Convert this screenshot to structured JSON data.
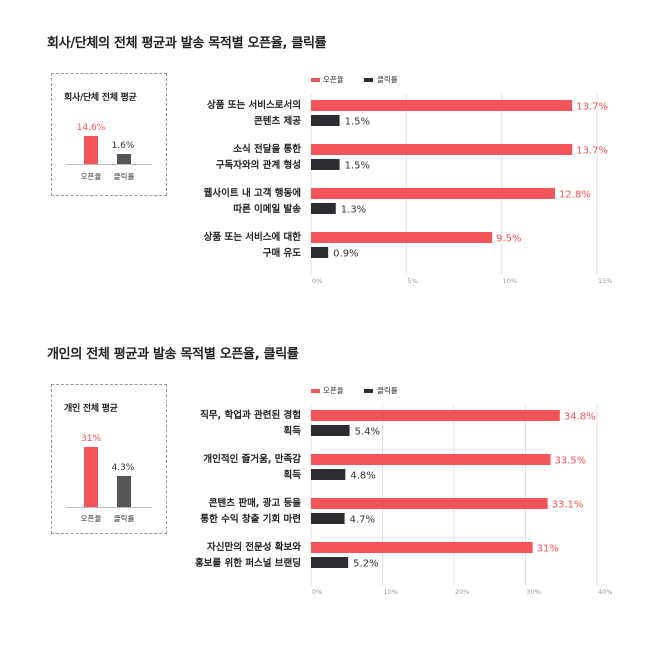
{
  "colors": {
    "open": "#f25459",
    "click": "#2b2d30",
    "grid": "#e2e2e2"
  },
  "chart_data": [
    {
      "type": "bar",
      "title": "회사/단체의 전체 평균과 발송 목적별 오픈율, 클릭률",
      "summary": {
        "title": "회사/단체 전체 평균",
        "categories": [
          "오픈율",
          "클릭률"
        ],
        "values": [
          14.6,
          1.6
        ],
        "value_labels": [
          "14.6%",
          "1.6%"
        ]
      },
      "legend": [
        "오픈율",
        "클릭률"
      ],
      "categories": [
        [
          "상품 또는 서비스로서의",
          "콘텐츠 제공"
        ],
        [
          "소식 전달을 통한",
          "구독자와의 관계 형성"
        ],
        [
          "웹사이트 내 고객 행동에",
          "따른 이메일 발송"
        ],
        [
          "상품 또는 서비스에 대한",
          "구매 유도"
        ]
      ],
      "series": [
        {
          "name": "오픈율",
          "values": [
            13.7,
            13.7,
            12.8,
            9.5
          ],
          "labels": [
            "13.7%",
            "13.7%",
            "12.8%",
            "9.5%"
          ]
        },
        {
          "name": "클릭률",
          "values": [
            1.5,
            1.5,
            1.3,
            0.9
          ],
          "labels": [
            "1.5%",
            "1.5%",
            "1.3%",
            "0.9%"
          ]
        }
      ],
      "xlim": [
        0,
        15
      ],
      "xticks": [
        "0%",
        "5%",
        "10%",
        "15%"
      ]
    },
    {
      "type": "bar",
      "title": "개인의 전체 평균과 발송 목적별 오픈율, 클릭률",
      "summary": {
        "title": "개인 전체 평균",
        "categories": [
          "오픈율",
          "클릭률"
        ],
        "values": [
          31,
          4.3
        ],
        "value_labels": [
          "31%",
          "4.3%"
        ]
      },
      "legend": [
        "오픈율",
        "클릭률"
      ],
      "categories": [
        [
          "직무, 학업과 관련된 경험",
          "획득"
        ],
        [
          "개인적인 즐거움, 만족감",
          "획득"
        ],
        [
          "콘텐츠 판매, 광고 등을",
          "통한 수익 창출 기회 마련"
        ],
        [
          "자신만의 전문성 확보와",
          "홍보를 위한 퍼스널 브랜딩"
        ]
      ],
      "series": [
        {
          "name": "오픈율",
          "values": [
            34.8,
            33.5,
            33.1,
            31
          ],
          "labels": [
            "34.8%",
            "33.5%",
            "33.1%",
            "31%"
          ]
        },
        {
          "name": "클릭률",
          "values": [
            5.4,
            4.8,
            4.7,
            5.2
          ],
          "labels": [
            "5.4%",
            "4.8%",
            "4.7%",
            "5.2%"
          ]
        }
      ],
      "xlim": [
        0,
        40
      ],
      "xticks": [
        "0%",
        "10%",
        "20%",
        "30%",
        "40%"
      ]
    }
  ]
}
